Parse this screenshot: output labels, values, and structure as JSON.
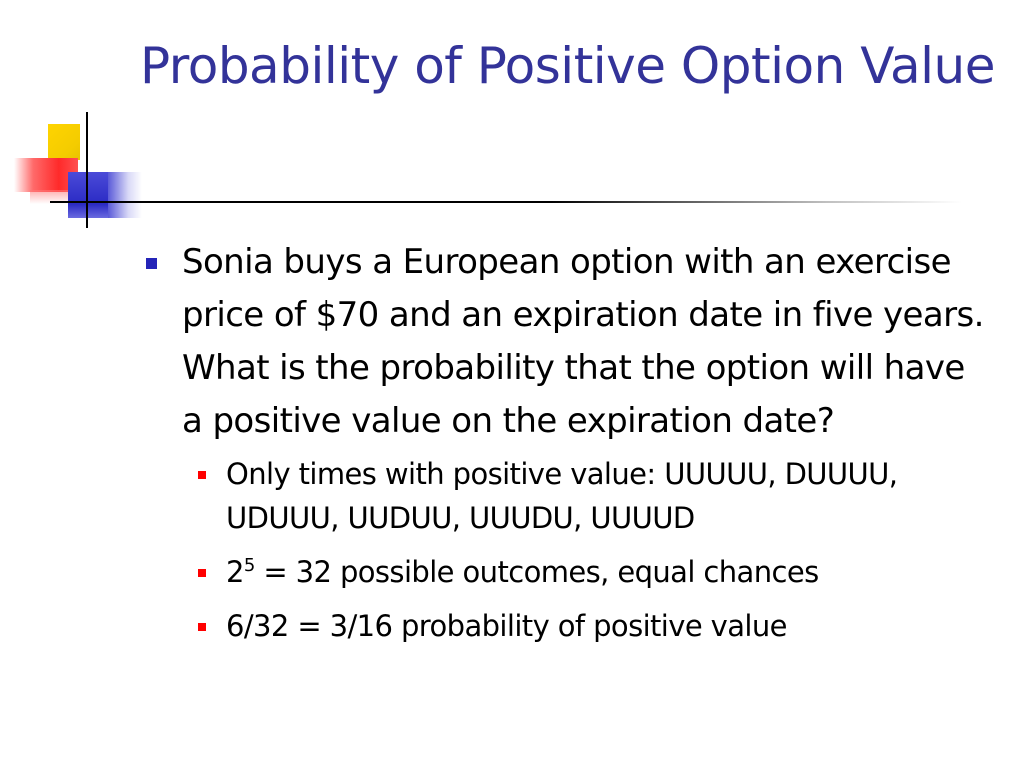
{
  "slide": {
    "title": "Probability of Positive Option Value",
    "bullets": [
      {
        "text": "Sonia buys a European option with an exercise price of $70 and an expiration date in five years. What is the probability that the option will have a positive value on the expiration date?",
        "sub_bullets": [
          {
            "text": "Only times with positive value: UUUUU, DUUUU, UDUUU, UUDUU, UUUDU, UUUUD"
          },
          {
            "base": "2",
            "exponent": "5",
            "rest": " = 32 possible outcomes, equal chances"
          },
          {
            "text": "6/32 = 3/16 probability of positive value"
          }
        ]
      }
    ]
  },
  "colors": {
    "title": "#333399",
    "level1_marker": "#2424b8",
    "level2_marker": "#ff0000",
    "logo_yellow": "#ffd400",
    "logo_red": "#ff2a2a",
    "logo_blue": "#2a2ac4"
  }
}
